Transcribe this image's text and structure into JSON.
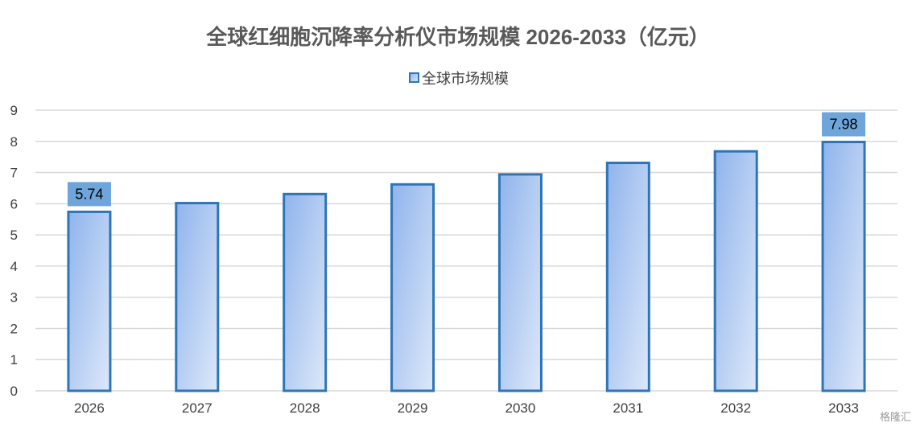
{
  "chart_data": {
    "type": "bar",
    "title": "全球红细胞沉降率分析仪市场规模 2026-2033（亿元）",
    "categories": [
      "2026",
      "2027",
      "2028",
      "2029",
      "2030",
      "2031",
      "2032",
      "2033"
    ],
    "series": [
      {
        "name": "全球市场规模",
        "values": [
          5.74,
          6.02,
          6.31,
          6.62,
          6.94,
          7.31,
          7.68,
          7.98
        ]
      }
    ],
    "data_labels": [
      {
        "category": "2026",
        "text": "5.74"
      },
      {
        "category": "2033",
        "text": "7.98"
      }
    ],
    "yticks": [
      "0",
      "1",
      "2",
      "3",
      "4",
      "5",
      "6",
      "7",
      "8",
      "9"
    ],
    "ylim": [
      0,
      9
    ],
    "grid": true,
    "legend_position": "top-center",
    "colors": {
      "bar_fill_start": "#8fb4ec",
      "bar_fill_end": "#dde8fa",
      "bar_stroke": "#2e75b6",
      "label_bg": "#6ea6dc",
      "grid": "#d9d9d9"
    }
  },
  "watermark": "格隆汇"
}
